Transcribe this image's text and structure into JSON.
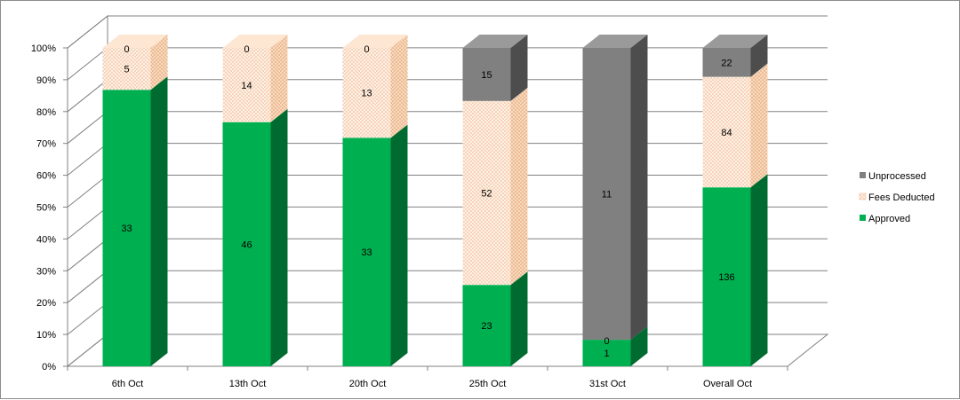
{
  "chart_data": {
    "type": "bar",
    "stacked": "percent",
    "three_d": true,
    "categories": [
      "6th Oct",
      "13th Oct",
      "20th Oct",
      "25th Oct",
      "31st Oct",
      "Overall Oct"
    ],
    "series": [
      {
        "name": "Approved",
        "values": [
          33,
          46,
          33,
          23,
          1,
          136
        ],
        "color": "#00b050",
        "side_color": "#006b30",
        "top_color": "#2ed27a"
      },
      {
        "name": "Fees Deducted",
        "values": [
          5,
          14,
          13,
          52,
          0,
          84
        ],
        "color": "#fde9d9",
        "side_color": "#f4c9a5",
        "top_color": "#fdf1e6",
        "pattern": "dotted"
      },
      {
        "name": "Unprocessed",
        "values": [
          0,
          0,
          0,
          15,
          11,
          22
        ],
        "color": "#808080",
        "side_color": "#4d4d4d",
        "top_color": "#9a9a9a"
      }
    ],
    "yaxis": {
      "ticks": [
        "0%",
        "10%",
        "20%",
        "30%",
        "40%",
        "50%",
        "60%",
        "70%",
        "80%",
        "90%",
        "100%"
      ],
      "range": [
        0,
        100
      ]
    },
    "title": "",
    "xlabel": "",
    "ylabel": "",
    "grid": true,
    "legend": {
      "position": "right",
      "order": [
        "Unprocessed",
        "Fees Deducted",
        "Approved"
      ]
    }
  }
}
